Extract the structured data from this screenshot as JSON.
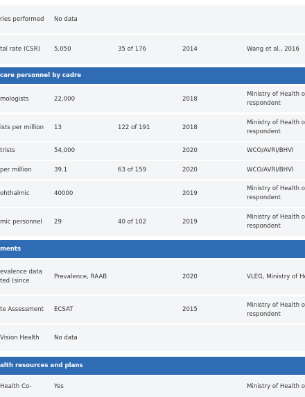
{
  "rows": [
    {
      "cells": [
        "ries performed",
        "No data",
        null,
        null,
        null
      ]
    },
    {
      "cells": [
        "tal rate (CSR)",
        "5,050",
        "35 of 176",
        "2014",
        "Wang et al., 2016"
      ]
    },
    {
      "heading": "care personnel by cadre"
    },
    {
      "cells": [
        "mologists",
        "22,000",
        null,
        "2018",
        [
          "Ministry of Health o",
          "respondent"
        ]
      ]
    },
    {
      "cells": [
        "ists per million",
        "13",
        "122 of 191",
        "2018",
        [
          "Ministry of Health o",
          "respondent"
        ]
      ]
    },
    {
      "cells": [
        "trists",
        "54,000",
        null,
        "2020",
        "WCO/AVRI/BHVI"
      ]
    },
    {
      "cells": [
        "per million",
        "39.1",
        "63 of 159",
        "2020",
        "WCO/AVRI/BHVI"
      ]
    },
    {
      "cells": [
        "ohthalmic",
        "40000",
        null,
        "2019",
        [
          "Ministry of Health o",
          "respondent"
        ]
      ]
    },
    {
      "cells": [
        "mic personnel",
        "29",
        "40 of 102",
        "2019",
        [
          "Ministry of Health o",
          "respondent"
        ]
      ]
    },
    {
      "heading": "ments"
    },
    {
      "cells": [
        [
          "evalence data",
          "ted (since"
        ],
        "Prevalence, RAAB",
        null,
        "2020",
        "VLEG, Ministry of He"
      ]
    },
    {
      "cells": [
        "te Assessment",
        "ECSAT",
        null,
        "2015",
        [
          "Ministry of Health o",
          "respondent"
        ]
      ]
    },
    {
      "cells": [
        "Vision Health",
        "No data",
        null,
        null,
        null
      ]
    },
    {
      "heading": "alth resources and plans"
    },
    {
      "cells": [
        "Health Co-",
        "Yes",
        null,
        null,
        "Ministry of Health o"
      ]
    }
  ]
}
